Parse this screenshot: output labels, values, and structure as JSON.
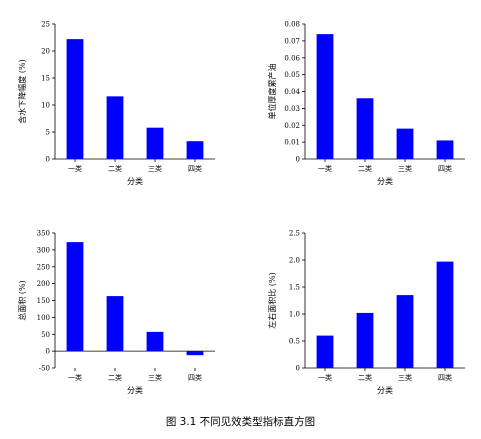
{
  "caption": "图 3.1 不同见效类型指标直方图",
  "colors": {
    "bar": "#0000ff",
    "axis": "#000000"
  },
  "chart_data": [
    {
      "type": "bar",
      "categories": [
        "一类",
        "二类",
        "三类",
        "四类"
      ],
      "values": [
        22.2,
        11.6,
        5.8,
        3.3
      ],
      "xlabel": "分类",
      "ylabel": "含水下降幅度 (%)",
      "ylim": [
        0,
        25
      ],
      "yticks": [
        "0",
        "5",
        "10",
        "15",
        "20",
        "25"
      ]
    },
    {
      "type": "bar",
      "categories": [
        "一类",
        "二类",
        "三类",
        "四类"
      ],
      "values": [
        0.074,
        0.036,
        0.018,
        0.011
      ],
      "xlabel": "分类",
      "ylabel": "单位厚度累产油",
      "ylim": [
        0,
        0.08
      ],
      "yticks": [
        "0",
        "0.01",
        "0.02",
        "0.03",
        "0.04",
        "0.05",
        "0.06",
        "0.07",
        "0.08"
      ]
    },
    {
      "type": "bar",
      "categories": [
        "一类",
        "二类",
        "三类",
        "四类"
      ],
      "values": [
        323,
        163,
        57,
        -12
      ],
      "xlabel": "分类",
      "ylabel": "总面积 (%)",
      "ylim": [
        -50,
        350
      ],
      "yticks": [
        "-50",
        "0",
        "50",
        "100",
        "150",
        "200",
        "250",
        "300",
        "350"
      ]
    },
    {
      "type": "bar",
      "categories": [
        "一类",
        "二类",
        "三类",
        "四类"
      ],
      "values": [
        0.6,
        1.02,
        1.35,
        1.97
      ],
      "xlabel": "分类",
      "ylabel": "左右面积比 (%)",
      "ylim": [
        0,
        2.5
      ],
      "yticks": [
        "0",
        "0.5",
        "1.0",
        "1.5",
        "2.0",
        "2.5"
      ]
    }
  ]
}
